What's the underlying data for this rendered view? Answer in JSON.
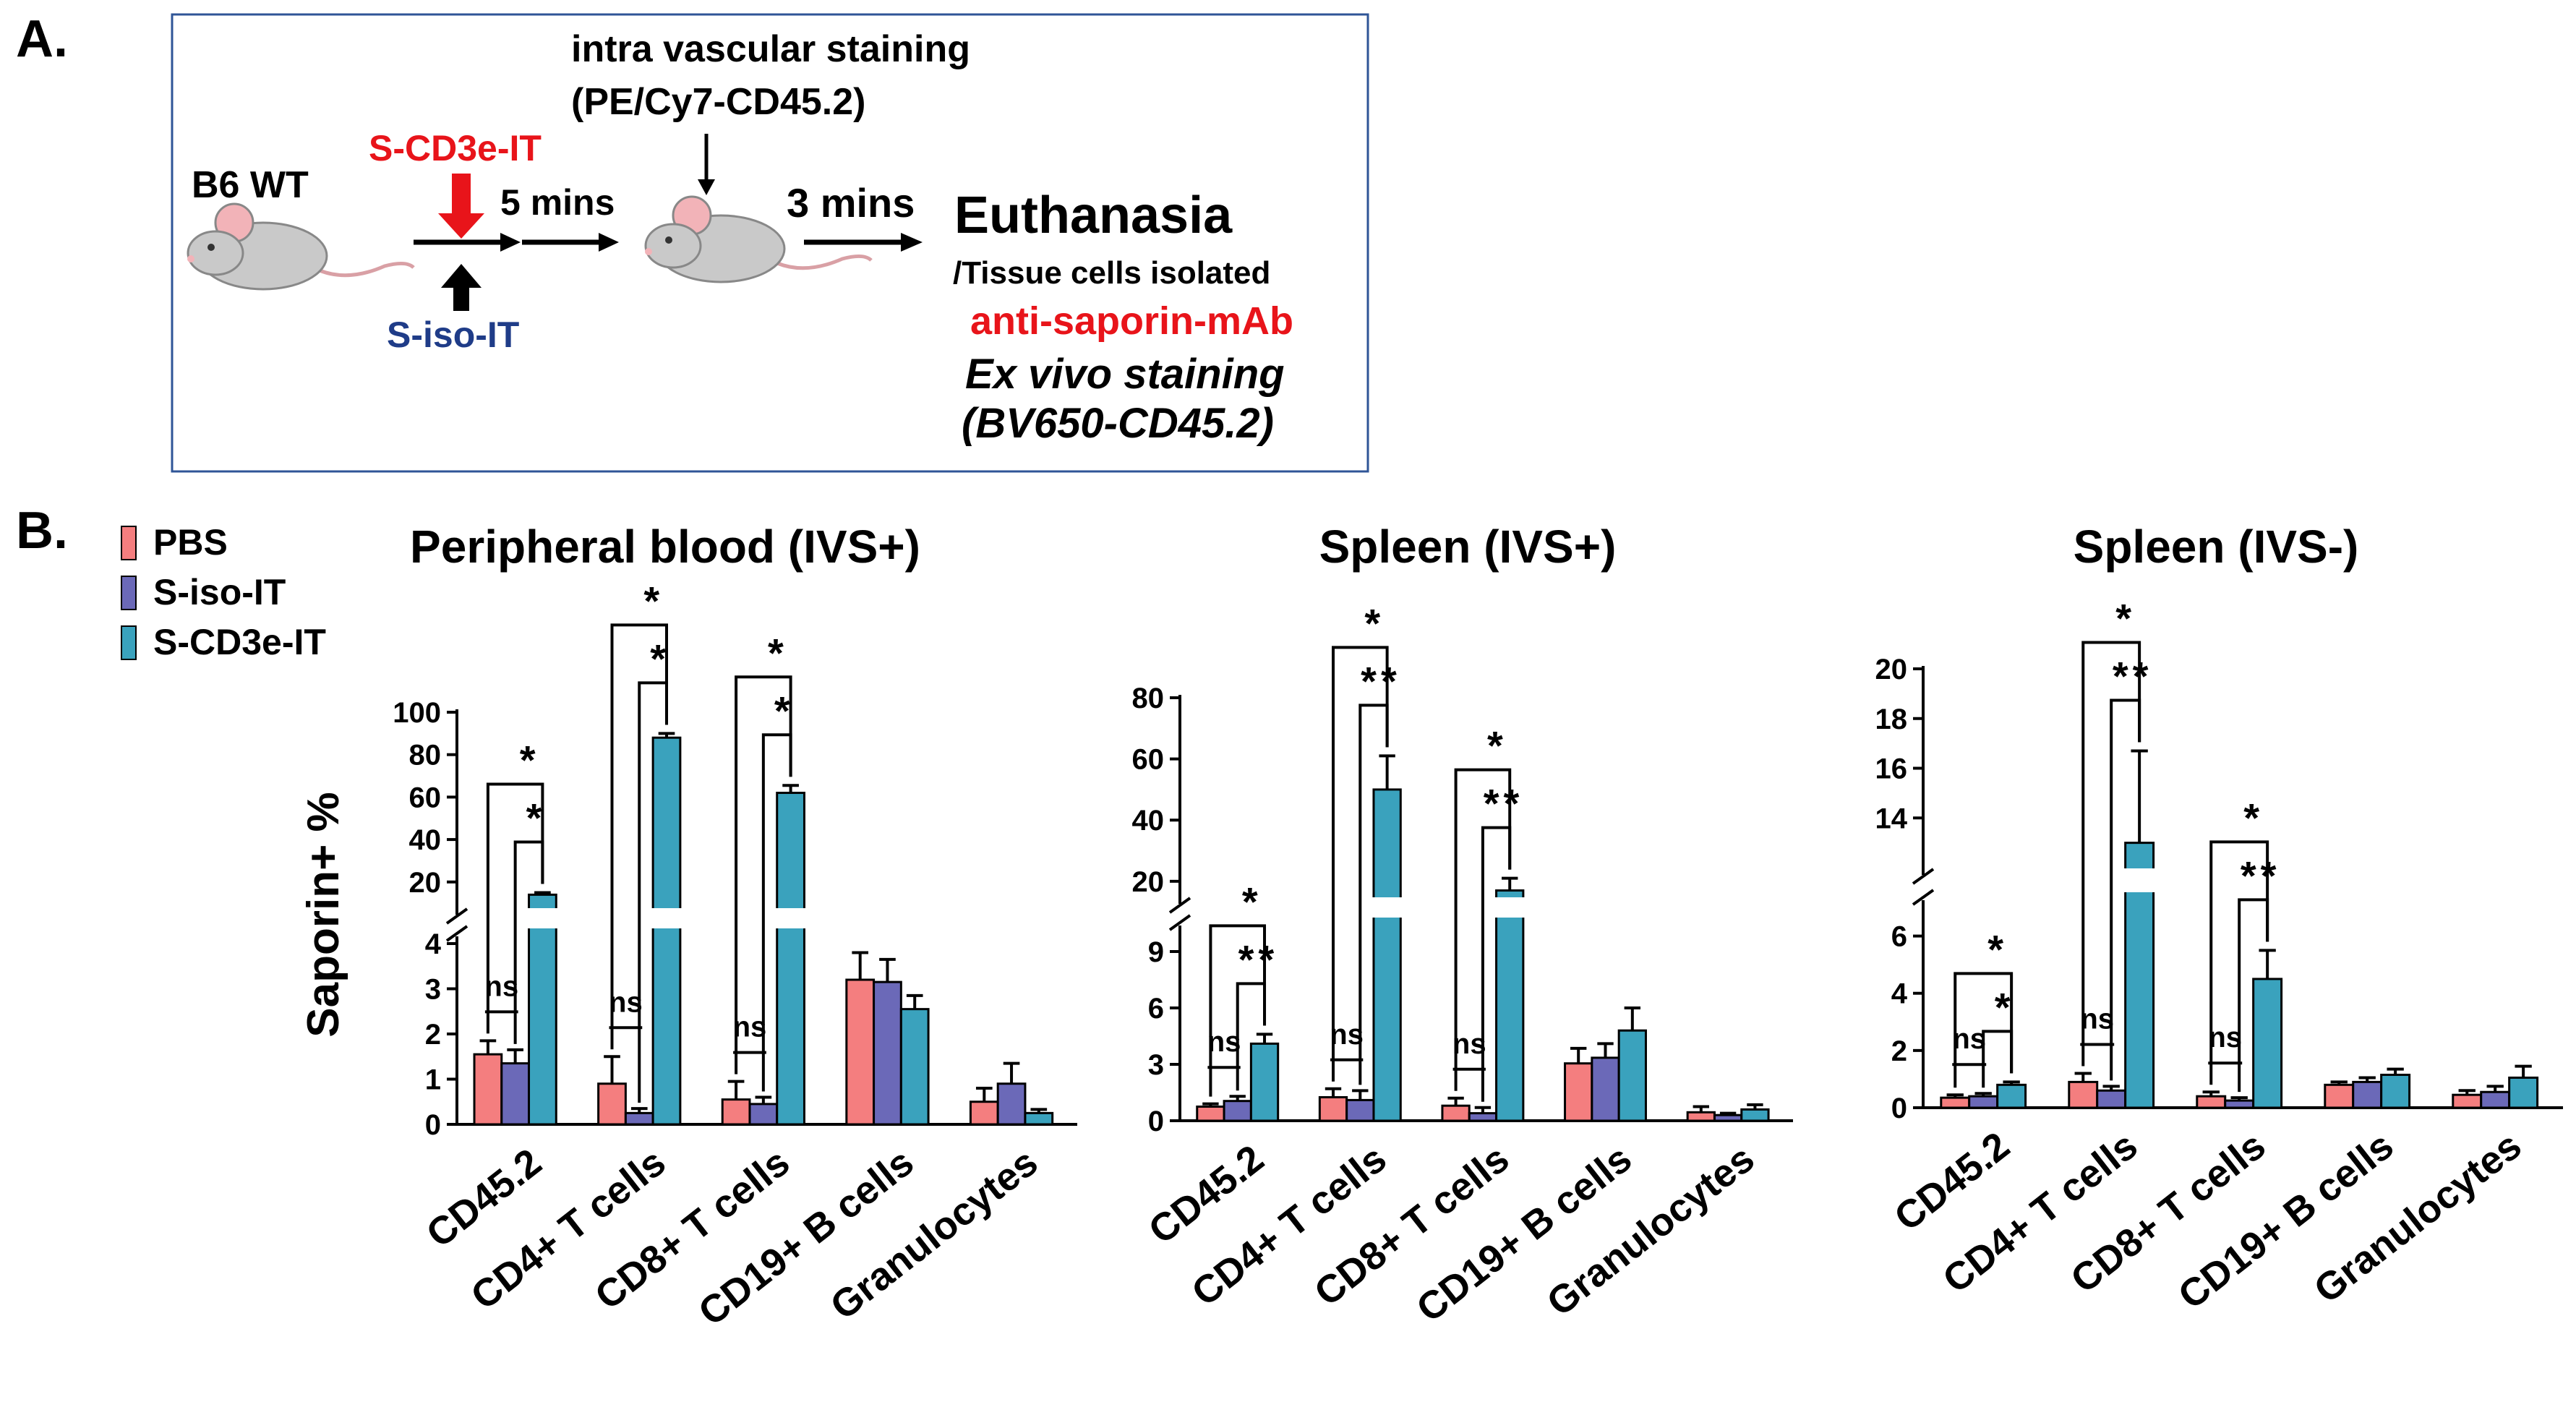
{
  "colors": {
    "pbs": "#F47E7F",
    "iso": "#6B69B8",
    "cd3e": "#3AA2BD",
    "red_text": "#E8141A",
    "navy_text": "#1F3C88",
    "box": "#2F5597",
    "mouse": "#C9C9C9",
    "ear": "#F2B3B8",
    "black": "#000000"
  },
  "panel_a": {
    "label": "A.",
    "b6wt": "B6 WT",
    "s_cd3e_it": "S-CD3e-IT",
    "s_iso_it": "S-iso-IT",
    "five_mins": "5 mins",
    "ivs_line1": "intra vascular staining",
    "ivs_line2": "(PE/Cy7-CD45.2)",
    "three_mins": "3 mins",
    "euthanasia": "Euthanasia",
    "tissue": "/Tissue cells isolated",
    "anti_saporin": "anti-saporin-mAb",
    "ex_vivo": "Ex vivo staining",
    "bv650": "(BV650-CD45.2)"
  },
  "panel_b": {
    "label": "B.",
    "ylabel": "Saporin+ %",
    "legend": [
      "PBS",
      "S-iso-IT",
      "S-CD3e-IT"
    ]
  },
  "chart_data": [
    {
      "type": "bar",
      "title": "Peripheral blood (IVS+)",
      "ylabel": "Saporin+ %",
      "categories": [
        "CD45.2",
        "CD4+ T cells",
        "CD8+ T cells",
        "CD19+ B cells",
        "Granulocytes"
      ],
      "series": [
        {
          "name": "PBS",
          "values": [
            1.55,
            0.9,
            0.55,
            3.2,
            0.5
          ],
          "errors": [
            0.3,
            0.6,
            0.4,
            0.6,
            0.3
          ]
        },
        {
          "name": "S-iso-IT",
          "values": [
            1.35,
            0.25,
            0.45,
            3.15,
            0.9
          ],
          "errors": [
            0.3,
            0.1,
            0.15,
            0.5,
            0.45
          ]
        },
        {
          "name": "S-CD3e-IT",
          "values": [
            14,
            88,
            62,
            2.55,
            0.25
          ],
          "errors": [
            1.0,
            2.0,
            3.5,
            0.3,
            0.08
          ]
        }
      ],
      "axis_break": {
        "lower_range": [
          0,
          4
        ],
        "upper_range": [
          8,
          100
        ]
      },
      "lower_ticks": [
        0,
        1,
        2,
        3,
        4
      ],
      "upper_ticks": [
        20,
        40,
        60,
        80,
        100
      ],
      "annotations": [
        {
          "label": "ns",
          "category": 0,
          "between": [
            "PBS",
            "S-iso-IT"
          ]
        },
        {
          "label": "*",
          "category": 0,
          "between": [
            "S-iso-IT",
            "S-CD3e-IT"
          ]
        },
        {
          "label": "*",
          "category": 0,
          "between": [
            "PBS",
            "S-CD3e-IT"
          ]
        },
        {
          "label": "ns",
          "category": 1,
          "between": [
            "PBS",
            "S-iso-IT"
          ]
        },
        {
          "label": "*",
          "category": 1,
          "between": [
            "S-iso-IT",
            "S-CD3e-IT"
          ]
        },
        {
          "label": "*",
          "category": 1,
          "between": [
            "PBS",
            "S-CD3e-IT"
          ]
        },
        {
          "label": "ns",
          "category": 2,
          "between": [
            "PBS",
            "S-iso-IT"
          ]
        },
        {
          "label": "*",
          "category": 2,
          "between": [
            "S-iso-IT",
            "S-CD3e-IT"
          ]
        },
        {
          "label": "*",
          "category": 2,
          "between": [
            "PBS",
            "S-CD3e-IT"
          ]
        }
      ]
    },
    {
      "type": "bar",
      "title": "Spleen (IVS+)",
      "ylabel": "Saporin+ %",
      "categories": [
        "CD45.2",
        "CD4+ T cells",
        "CD8+ T cells",
        "CD19+ B cells",
        "Granulocytes"
      ],
      "series": [
        {
          "name": "PBS",
          "values": [
            0.75,
            1.25,
            0.8,
            3.05,
            0.45
          ],
          "errors": [
            0.15,
            0.45,
            0.4,
            0.8,
            0.3
          ]
        },
        {
          "name": "S-iso-IT",
          "values": [
            1.05,
            1.1,
            0.4,
            3.35,
            0.3
          ],
          "errors": [
            0.25,
            0.5,
            0.3,
            0.75,
            0.1
          ]
        },
        {
          "name": "S-CD3e-IT",
          "values": [
            4.1,
            50,
            17,
            4.8,
            0.6
          ],
          "errors": [
            0.5,
            11,
            4,
            1.2,
            0.25
          ]
        }
      ],
      "axis_break": {
        "lower_range": [
          0,
          10
        ],
        "upper_range": [
          15,
          80
        ]
      },
      "lower_ticks": [
        0,
        3,
        6,
        9
      ],
      "upper_ticks": [
        20,
        40,
        60,
        80
      ],
      "annotations": [
        {
          "label": "ns",
          "category": 0,
          "between": [
            "PBS",
            "S-iso-IT"
          ]
        },
        {
          "label": "**",
          "category": 0,
          "between": [
            "S-iso-IT",
            "S-CD3e-IT"
          ]
        },
        {
          "label": "*",
          "category": 0,
          "between": [
            "PBS",
            "S-CD3e-IT"
          ]
        },
        {
          "label": "ns",
          "category": 1,
          "between": [
            "PBS",
            "S-iso-IT"
          ]
        },
        {
          "label": "**",
          "category": 1,
          "between": [
            "S-iso-IT",
            "S-CD3e-IT"
          ]
        },
        {
          "label": "*",
          "category": 1,
          "between": [
            "PBS",
            "S-CD3e-IT"
          ]
        },
        {
          "label": "ns",
          "category": 2,
          "between": [
            "PBS",
            "S-iso-IT"
          ]
        },
        {
          "label": "**",
          "category": 2,
          "between": [
            "S-iso-IT",
            "S-CD3e-IT"
          ]
        },
        {
          "label": "*",
          "category": 2,
          "between": [
            "PBS",
            "S-CD3e-IT"
          ]
        }
      ]
    },
    {
      "type": "bar",
      "title": "Spleen (IVS-)",
      "ylabel": "Saporin+ %",
      "categories": [
        "CD45.2",
        "CD4+ T cells",
        "CD8+ T cells",
        "CD19+ B cells",
        "Granulocytes"
      ],
      "series": [
        {
          "name": "PBS",
          "values": [
            0.35,
            0.9,
            0.4,
            0.8,
            0.45
          ],
          "errors": [
            0.1,
            0.3,
            0.15,
            0.1,
            0.15
          ]
        },
        {
          "name": "S-iso-IT",
          "values": [
            0.4,
            0.6,
            0.25,
            0.9,
            0.55
          ],
          "errors": [
            0.1,
            0.15,
            0.1,
            0.15,
            0.2
          ]
        },
        {
          "name": "S-CD3e-IT",
          "values": [
            0.8,
            13,
            4.5,
            1.15,
            1.05
          ],
          "errors": [
            0.1,
            3.7,
            1.0,
            0.2,
            0.4
          ]
        }
      ],
      "axis_break": {
        "lower_range": [
          0,
          7
        ],
        "upper_range": [
          12,
          20
        ]
      },
      "lower_ticks": [
        0,
        2,
        4,
        6
      ],
      "upper_ticks": [
        14,
        16,
        18,
        20
      ],
      "annotations": [
        {
          "label": "ns",
          "category": 0,
          "between": [
            "PBS",
            "S-iso-IT"
          ]
        },
        {
          "label": "*",
          "category": 0,
          "between": [
            "S-iso-IT",
            "S-CD3e-IT"
          ]
        },
        {
          "label": "*",
          "category": 0,
          "between": [
            "PBS",
            "S-CD3e-IT"
          ]
        },
        {
          "label": "ns",
          "category": 1,
          "between": [
            "PBS",
            "S-iso-IT"
          ]
        },
        {
          "label": "**",
          "category": 1,
          "between": [
            "S-iso-IT",
            "S-CD3e-IT"
          ]
        },
        {
          "label": "*",
          "category": 1,
          "between": [
            "PBS",
            "S-CD3e-IT"
          ]
        },
        {
          "label": "ns",
          "category": 2,
          "between": [
            "PBS",
            "S-iso-IT"
          ]
        },
        {
          "label": "**",
          "category": 2,
          "between": [
            "S-iso-IT",
            "S-CD3e-IT"
          ]
        },
        {
          "label": "*",
          "category": 2,
          "between": [
            "PBS",
            "S-CD3e-IT"
          ]
        }
      ]
    }
  ]
}
